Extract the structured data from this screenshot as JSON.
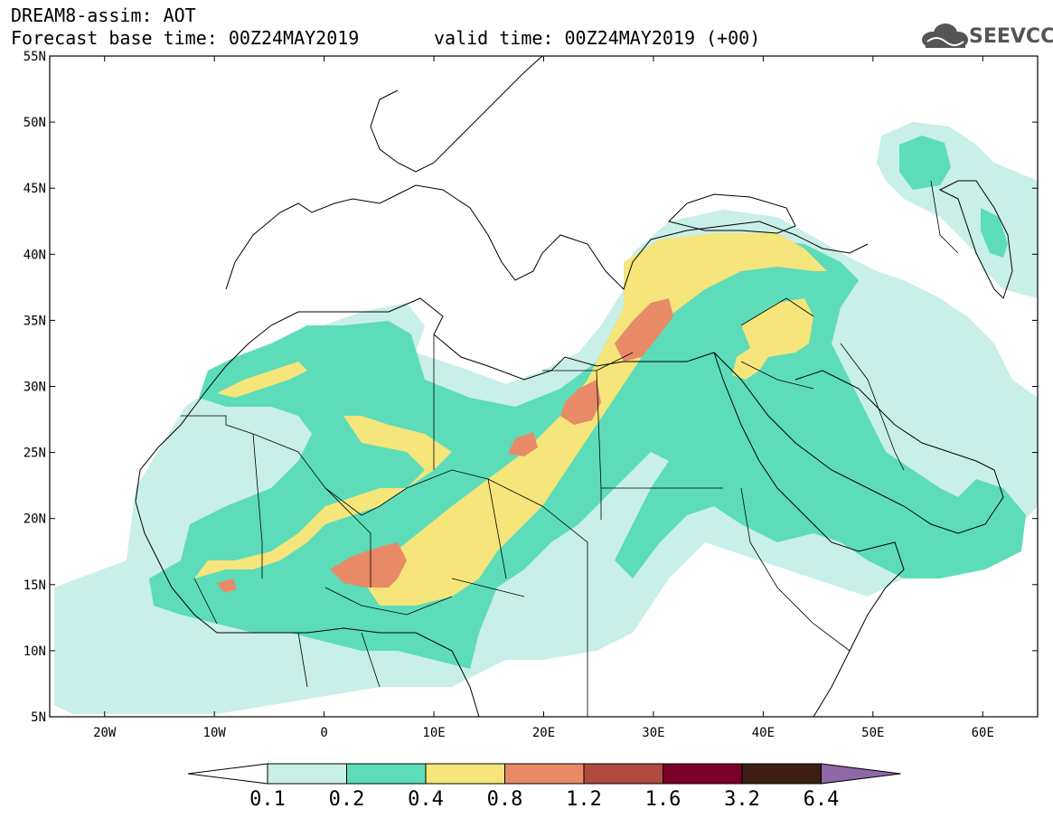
{
  "header": {
    "line1": "DREAM8-assim: AOT",
    "line2": "Forecast base time: 00Z24MAY2019",
    "line3": "valid time: 00Z24MAY2019 (+00)"
  },
  "logo": {
    "text": "SEEVCCC"
  },
  "map": {
    "lat_labels": [
      "55N",
      "50N",
      "45N",
      "40N",
      "35N",
      "30N",
      "25N",
      "20N",
      "15N",
      "10N",
      "5N"
    ],
    "lon_labels": [
      "20W",
      "10W",
      "0",
      "10E",
      "20E",
      "30E",
      "40E",
      "50E",
      "60E"
    ],
    "extent": {
      "lon": [
        -25,
        65
      ],
      "lat": [
        5,
        55
      ]
    }
  },
  "colorbar": {
    "labels": [
      "0.1",
      "0.2",
      "0.4",
      "0.8",
      "1.2",
      "1.6",
      "3.2",
      "6.4"
    ],
    "colors": [
      "#ffffff",
      "#c8efe8",
      "#5ddcb9",
      "#f5e57a",
      "#e88a68",
      "#b04a3c",
      "#7a0028",
      "#3c1e14",
      "#8e68a8"
    ]
  }
}
